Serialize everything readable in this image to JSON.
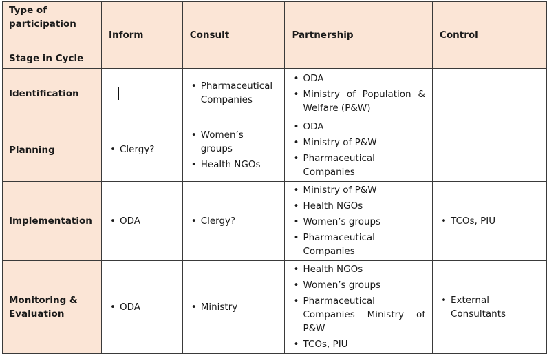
{
  "header": {
    "corner_top": "Type of participation",
    "corner_bottom": "Stage in Cycle",
    "columns": [
      "Inform",
      "Consult",
      "Partnership",
      "Control"
    ]
  },
  "rows": [
    {
      "stage": "Identification",
      "inform": [],
      "consult": [
        "Pharmaceutical Companies"
      ],
      "partnership": [
        "ODA",
        "Ministry of Population & Welfare (P&W)"
      ],
      "control": []
    },
    {
      "stage": "Planning",
      "inform": [
        "Clergy?"
      ],
      "consult": [
        "Women’s groups",
        "Health NGOs"
      ],
      "partnership": [
        "ODA",
        "Ministry of P&W",
        "Pharmaceutical Companies"
      ],
      "control": []
    },
    {
      "stage": "Implementation",
      "inform": [
        "ODA"
      ],
      "consult": [
        "Clergy?"
      ],
      "partnership": [
        "Ministry of P&W",
        "Health NGOs",
        "Women’s groups",
        "Pharmaceutical Companies"
      ],
      "control": [
        "TCOs, PIU"
      ]
    },
    {
      "stage": "Monitoring & Evaluation",
      "inform": [
        "ODA"
      ],
      "consult": [
        "Ministry"
      ],
      "partnership": [
        "Health NGOs",
        "Women’s groups",
        "Pharmaceutical Companies Ministry of P&W",
        "TCOs, PIU"
      ],
      "control": [
        "External Consultants"
      ]
    }
  ]
}
